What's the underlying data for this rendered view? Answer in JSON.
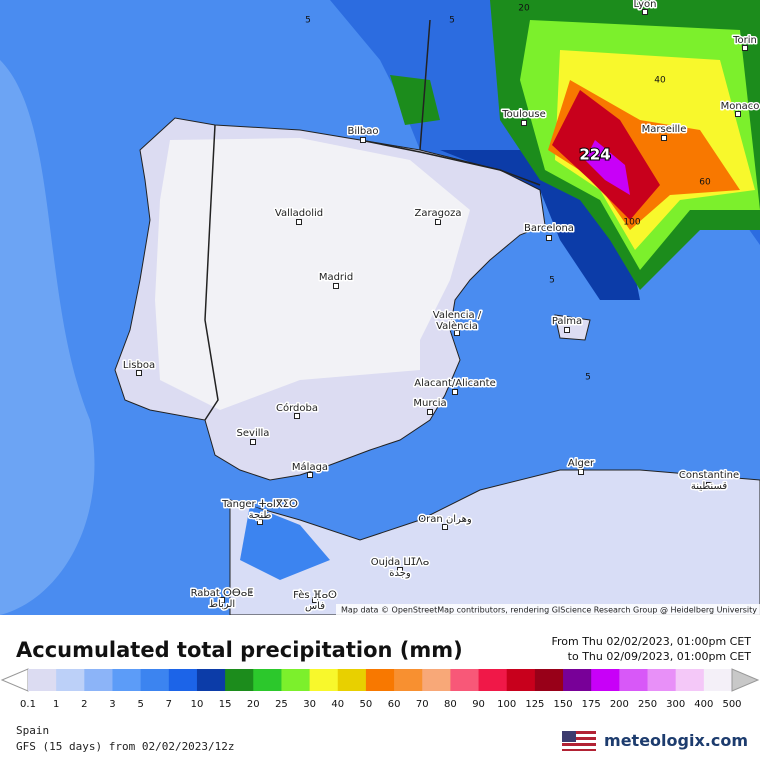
{
  "map": {
    "cities": [
      "Lyon",
      "Torin",
      "Bilbao",
      "Toulouse",
      "Monaco",
      "Marseille",
      "Valladolid",
      "Zaragoza",
      "Barcelona",
      "Madrid",
      "Valencia /",
      "València",
      "Palma",
      "Lisboa",
      "Alacant/Alicante",
      "Murcia",
      "Córdoba",
      "Sevilla",
      "Málaga",
      "Alger",
      "Constantine",
      "قسنطينة",
      "Tanger ⵜⴰⵏⴳⵉⵔ",
      "طنجة",
      "Oran وهران",
      "Oujda ⵡⵊⴷⴰ",
      "وجدة",
      "Rabat ⵔⴱⴰⵟ",
      "الرباط",
      "Fès ⴼⴰⵙ",
      "فاس"
    ],
    "contour_labels": [
      "5",
      "5",
      "20",
      "40",
      "224",
      "60",
      "100",
      "5",
      "5"
    ],
    "attribution": "Map data © OpenStreetMap contributors, rendering GIScience Research Group @ Heidelberg University"
  },
  "legend": {
    "title": "Accumulated total precipitation (mm)",
    "from": "From Thu 02/02/2023, 01:00pm CET",
    "to": "to Thu 02/09/2023, 01:00pm CET",
    "ticks": [
      "0.1",
      "1",
      "2",
      "3",
      "5",
      "7",
      "10",
      "15",
      "20",
      "25",
      "30",
      "40",
      "50",
      "60",
      "70",
      "80",
      "90",
      "100",
      "125",
      "150",
      "175",
      "200",
      "250",
      "300",
      "400",
      "500"
    ],
    "colors": [
      "#dcdcf2",
      "#bcd0f8",
      "#8cb4f8",
      "#5c9cf8",
      "#3c84f0",
      "#1c64e8",
      "#0c3ca8",
      "#1c8c1c",
      "#2cc82c",
      "#7cf02c",
      "#f8f82c",
      "#e8d000",
      "#f87800",
      "#f89030",
      "#f8a878",
      "#f85878",
      "#f01848",
      "#c8001c",
      "#980018",
      "#780098",
      "#c800f8",
      "#d858f8",
      "#e890f8",
      "#f4c8f8",
      "#f4f0f8"
    ],
    "below_color": "#ffffff",
    "above_color": "#c8c8c8"
  },
  "footer": {
    "region": "Spain",
    "model": "GFS (15 days) from 02/02/2023/12z",
    "brand": "meteologix.com"
  }
}
